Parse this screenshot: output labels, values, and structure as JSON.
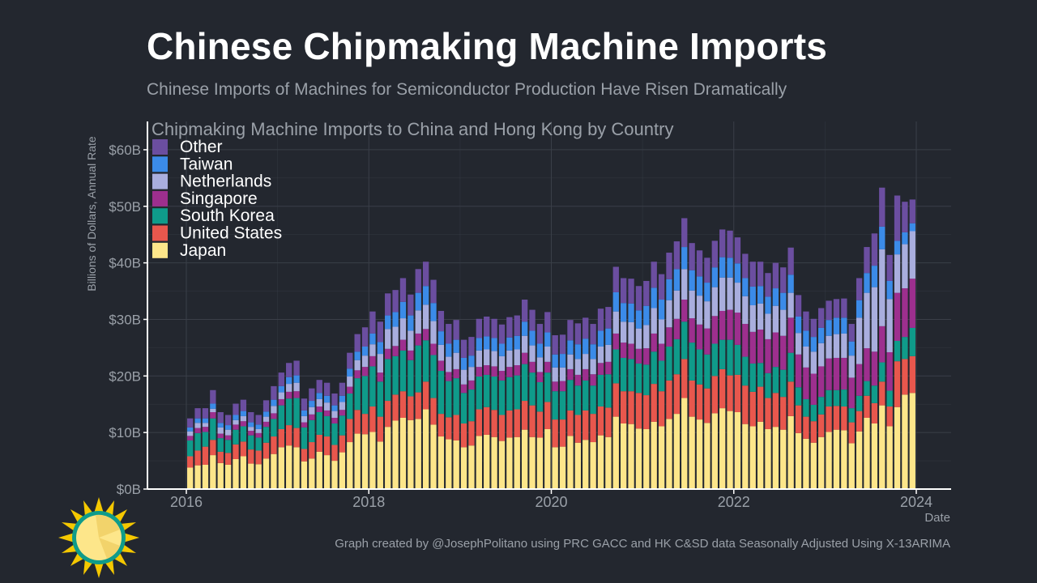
{
  "header": {
    "title": "Chinese Chipmaking Machine Imports",
    "subtitle": "Chinese Imports of Machines for Semiconductor Production Have Risen Dramatically"
  },
  "footer": {
    "credit": "Graph created by @JosephPolitano using PRC GACC and HK C&SD data Seasonally Adjusted Using X-13ARIMA"
  },
  "logo": {
    "icon": "sun-logo-icon"
  },
  "chart_data": {
    "type": "bar",
    "stacked": true,
    "title": "Chipmaking Machine Imports to China and Hong Kong by Country",
    "xlabel": "Date",
    "ylabel": "Billions of Dollars, Annual Rate",
    "ylim": [
      0,
      65
    ],
    "y_ticks": [
      0,
      10,
      20,
      30,
      40,
      50,
      60
    ],
    "y_tick_labels": [
      "$0B",
      "$10B",
      "$20B",
      "$30B",
      "$40B",
      "$50B",
      "$60B"
    ],
    "x_ticks": [
      2016,
      2018,
      2020,
      2022,
      2024
    ],
    "x_tick_labels": [
      "2016",
      "2018",
      "2020",
      "2022",
      "2024"
    ],
    "grid": true,
    "legend_position": "top-left",
    "x_start": "2016-01",
    "x_end": "2023-12",
    "colors": {
      "background": "#23272f",
      "grid": "#3a3f48",
      "axis": "#ffffff",
      "text_muted": "#9aa0a8"
    },
    "series": [
      {
        "name": "Japan",
        "color": "#fde68a",
        "values": [
          3.8,
          4.2,
          4.3,
          6.0,
          4.6,
          4.3,
          5.3,
          5.8,
          4.5,
          4.4,
          5.4,
          6.2,
          7.4,
          7.7,
          7.4,
          4.9,
          5.4,
          6.6,
          6.0,
          5.0,
          6.5,
          8.3,
          9.8,
          9.7,
          10.1,
          8.4,
          11.0,
          12.1,
          12.6,
          12.2,
          12.4,
          14.1,
          11.4,
          9.3,
          8.8,
          8.6,
          7.4,
          7.7,
          9.4,
          9.6,
          9.2,
          8.5,
          9.1,
          9.2,
          10.5,
          9.2,
          9.1,
          10.6,
          7.4,
          7.5,
          9.4,
          8.2,
          8.7,
          8.3,
          9.5,
          9.2,
          12.8,
          11.6,
          11.5,
          10.7,
          10.6,
          11.9,
          11.1,
          12.4,
          13.3,
          16.1,
          12.8,
          12.3,
          11.7,
          13.4,
          14.3,
          13.8,
          13.6,
          11.5,
          11.1,
          11.9,
          10.6,
          11.0,
          10.5,
          12.9,
          9.9,
          8.9,
          8.2,
          9.2,
          10.1,
          10.5,
          10.4,
          8.1,
          10.2,
          12.6,
          11.6,
          14.8,
          11.1,
          14.5,
          16.7,
          17.0
        ]
      },
      {
        "name": "United States",
        "color": "#e8574d",
        "values": [
          2.0,
          2.6,
          3.2,
          2.7,
          2.0,
          2.1,
          2.6,
          2.6,
          2.5,
          2.4,
          2.8,
          3.1,
          3.2,
          3.6,
          3.4,
          2.2,
          2.9,
          3.0,
          3.3,
          2.8,
          3.0,
          4.1,
          4.2,
          3.6,
          4.5,
          4.4,
          4.6,
          4.6,
          4.7,
          4.2,
          4.7,
          4.9,
          4.7,
          4.0,
          3.9,
          4.5,
          4.2,
          4.3,
          4.7,
          4.9,
          4.8,
          4.6,
          4.8,
          4.9,
          5.1,
          5.6,
          4.6,
          4.8,
          4.9,
          4.8,
          4.5,
          4.9,
          5.2,
          5.0,
          5.1,
          5.2,
          5.9,
          5.7,
          5.8,
          6.3,
          6.0,
          6.7,
          6.2,
          6.8,
          7.0,
          6.9,
          6.4,
          6.2,
          6.1,
          6.6,
          6.9,
          6.3,
          6.6,
          6.8,
          6.1,
          6.2,
          5.5,
          6.0,
          5.8,
          6.1,
          4.9,
          3.9,
          3.8,
          4.0,
          4.5,
          4.2,
          4.2,
          3.7,
          3.6,
          3.9,
          3.6,
          4.2,
          3.5,
          8.1,
          6.3,
          6.5
        ]
      },
      {
        "name": "South Korea",
        "color": "#0f9b8a",
        "values": [
          2.8,
          3.1,
          2.6,
          3.8,
          2.4,
          2.3,
          2.6,
          2.7,
          2.5,
          2.3,
          2.8,
          3.1,
          4.2,
          4.7,
          5.3,
          3.8,
          3.9,
          4.0,
          3.6,
          3.8,
          3.5,
          4.5,
          5.6,
          6.7,
          7.1,
          6.2,
          7.4,
          6.8,
          7.2,
          6.4,
          8.3,
          7.3,
          7.6,
          7.6,
          6.4,
          6.5,
          5.4,
          5.6,
          5.8,
          5.7,
          5.9,
          6.1,
          5.9,
          6.0,
          6.5,
          5.8,
          5.2,
          5.2,
          5.0,
          5.0,
          5.4,
          5.2,
          5.3,
          5.0,
          5.6,
          5.9,
          6.0,
          5.9,
          5.7,
          5.2,
          5.4,
          5.7,
          5.4,
          6.0,
          6.2,
          6.6,
          6.7,
          6.2,
          6.0,
          5.7,
          5.2,
          6.3,
          5.3,
          5.1,
          5.0,
          4.2,
          4.4,
          4.6,
          4.8,
          5.1,
          3.2,
          3.1,
          2.9,
          3.1,
          2.9,
          2.8,
          3.0,
          2.5,
          2.7,
          2.6,
          3.1,
          3.4,
          2.8,
          3.6,
          3.9,
          5.0
        ]
      },
      {
        "name": "Singapore",
        "color": "#9d2f8e",
        "values": [
          0.8,
          0.9,
          0.9,
          1.1,
          0.8,
          0.8,
          0.9,
          0.9,
          0.8,
          0.8,
          0.9,
          1.0,
          1.1,
          1.2,
          1.2,
          0.9,
          1.0,
          1.0,
          1.0,
          1.0,
          1.0,
          1.2,
          1.4,
          1.6,
          1.8,
          1.6,
          1.8,
          1.8,
          1.9,
          1.7,
          2.1,
          2.0,
          2.0,
          1.8,
          1.6,
          1.6,
          1.5,
          1.6,
          1.7,
          1.7,
          1.8,
          1.7,
          1.8,
          1.8,
          2.0,
          1.9,
          1.8,
          1.9,
          1.7,
          1.8,
          1.9,
          1.9,
          2.0,
          2.0,
          2.1,
          2.2,
          2.8,
          2.7,
          2.7,
          2.6,
          2.9,
          3.2,
          3.0,
          3.4,
          3.6,
          3.9,
          4.3,
          4.4,
          4.6,
          4.9,
          5.1,
          5.3,
          5.7,
          5.8,
          5.6,
          5.9,
          6.0,
          6.1,
          6.0,
          6.2,
          5.8,
          5.6,
          5.5,
          5.4,
          5.6,
          5.7,
          5.6,
          5.4,
          5.6,
          5.8,
          6.0,
          6.4,
          6.8,
          8.5,
          8.6,
          8.7
        ]
      },
      {
        "name": "Netherlands",
        "color": "#a9aede",
        "values": [
          0.8,
          0.9,
          0.7,
          0.6,
          1.1,
          1.0,
          0.8,
          0.9,
          0.7,
          0.7,
          0.9,
          1.3,
          1.2,
          1.4,
          1.5,
          1.1,
          1.3,
          1.3,
          1.4,
          1.2,
          1.4,
          1.8,
          1.8,
          2.0,
          2.1,
          3.3,
          3.5,
          3.4,
          3.8,
          3.5,
          4.1,
          4.3,
          4.0,
          2.8,
          2.7,
          2.9,
          2.6,
          2.4,
          2.9,
          2.8,
          2.7,
          2.6,
          2.9,
          2.8,
          3.0,
          2.9,
          2.6,
          2.7,
          2.5,
          2.4,
          2.6,
          2.8,
          2.7,
          2.7,
          2.9,
          3.0,
          3.9,
          3.7,
          3.8,
          3.6,
          4.1,
          4.5,
          4.3,
          4.8,
          5.0,
          5.4,
          4.9,
          5.1,
          4.8,
          5.1,
          5.9,
          5.7,
          5.3,
          4.9,
          4.7,
          4.6,
          4.5,
          4.7,
          4.6,
          4.4,
          3.8,
          3.7,
          3.9,
          4.1,
          4.0,
          4.2,
          4.3,
          3.9,
          8.2,
          9.8,
          11.4,
          13.6,
          9.4,
          6.8,
          7.8,
          8.4
        ]
      },
      {
        "name": "Taiwan",
        "color": "#3b8be8",
        "values": [
          0.7,
          0.8,
          0.8,
          0.9,
          0.8,
          0.8,
          0.9,
          0.9,
          0.8,
          0.8,
          0.9,
          1.1,
          1.1,
          1.2,
          1.3,
          1.0,
          1.1,
          1.1,
          1.2,
          1.0,
          1.1,
          1.4,
          1.5,
          1.6,
          1.9,
          2.1,
          2.4,
          2.6,
          2.9,
          2.7,
          3.1,
          3.3,
          3.2,
          2.4,
          2.3,
          2.3,
          2.1,
          2.0,
          2.2,
          2.3,
          2.3,
          2.2,
          2.3,
          2.4,
          2.5,
          2.6,
          2.4,
          2.5,
          2.3,
          2.4,
          2.5,
          2.6,
          2.7,
          2.6,
          2.8,
          2.9,
          3.4,
          3.3,
          3.3,
          3.2,
          3.4,
          3.6,
          3.5,
          3.7,
          3.8,
          3.9,
          3.6,
          3.4,
          3.3,
          3.5,
          3.6,
          3.5,
          3.4,
          3.2,
          3.3,
          3.1,
          3.0,
          3.1,
          3.0,
          3.2,
          2.9,
          2.8,
          2.6,
          2.7,
          2.8,
          2.9,
          2.8,
          2.5,
          3.1,
          3.5,
          3.8,
          4.0,
          3.2,
          2.4,
          2.1,
          1.4
        ]
      },
      {
        "name": "Other",
        "color": "#6b4ea0",
        "values": [
          1.6,
          1.8,
          1.8,
          2.4,
          1.9,
          1.8,
          2.0,
          2.0,
          1.8,
          1.7,
          2.0,
          2.4,
          2.4,
          2.5,
          2.6,
          2.1,
          2.2,
          2.3,
          2.3,
          2.1,
          2.3,
          2.8,
          3.1,
          3.4,
          3.9,
          3.6,
          3.9,
          3.9,
          4.2,
          3.7,
          4.2,
          4.3,
          4.1,
          3.6,
          3.5,
          3.5,
          3.2,
          3.3,
          3.4,
          3.5,
          3.4,
          3.4,
          3.6,
          3.6,
          3.9,
          3.7,
          3.5,
          3.6,
          3.4,
          3.4,
          3.6,
          3.7,
          3.7,
          3.6,
          3.9,
          3.8,
          4.5,
          4.4,
          4.4,
          4.3,
          4.4,
          4.6,
          4.5,
          4.7,
          4.9,
          5.1,
          4.8,
          4.6,
          4.4,
          4.7,
          4.9,
          4.8,
          4.6,
          4.3,
          4.4,
          4.3,
          4.2,
          4.5,
          4.5,
          4.8,
          3.8,
          3.4,
          3.2,
          3.5,
          3.4,
          3.3,
          3.4,
          3.1,
          3.9,
          4.6,
          5.7,
          6.9,
          4.6,
          8.0,
          5.4,
          4.2
        ]
      }
    ]
  }
}
